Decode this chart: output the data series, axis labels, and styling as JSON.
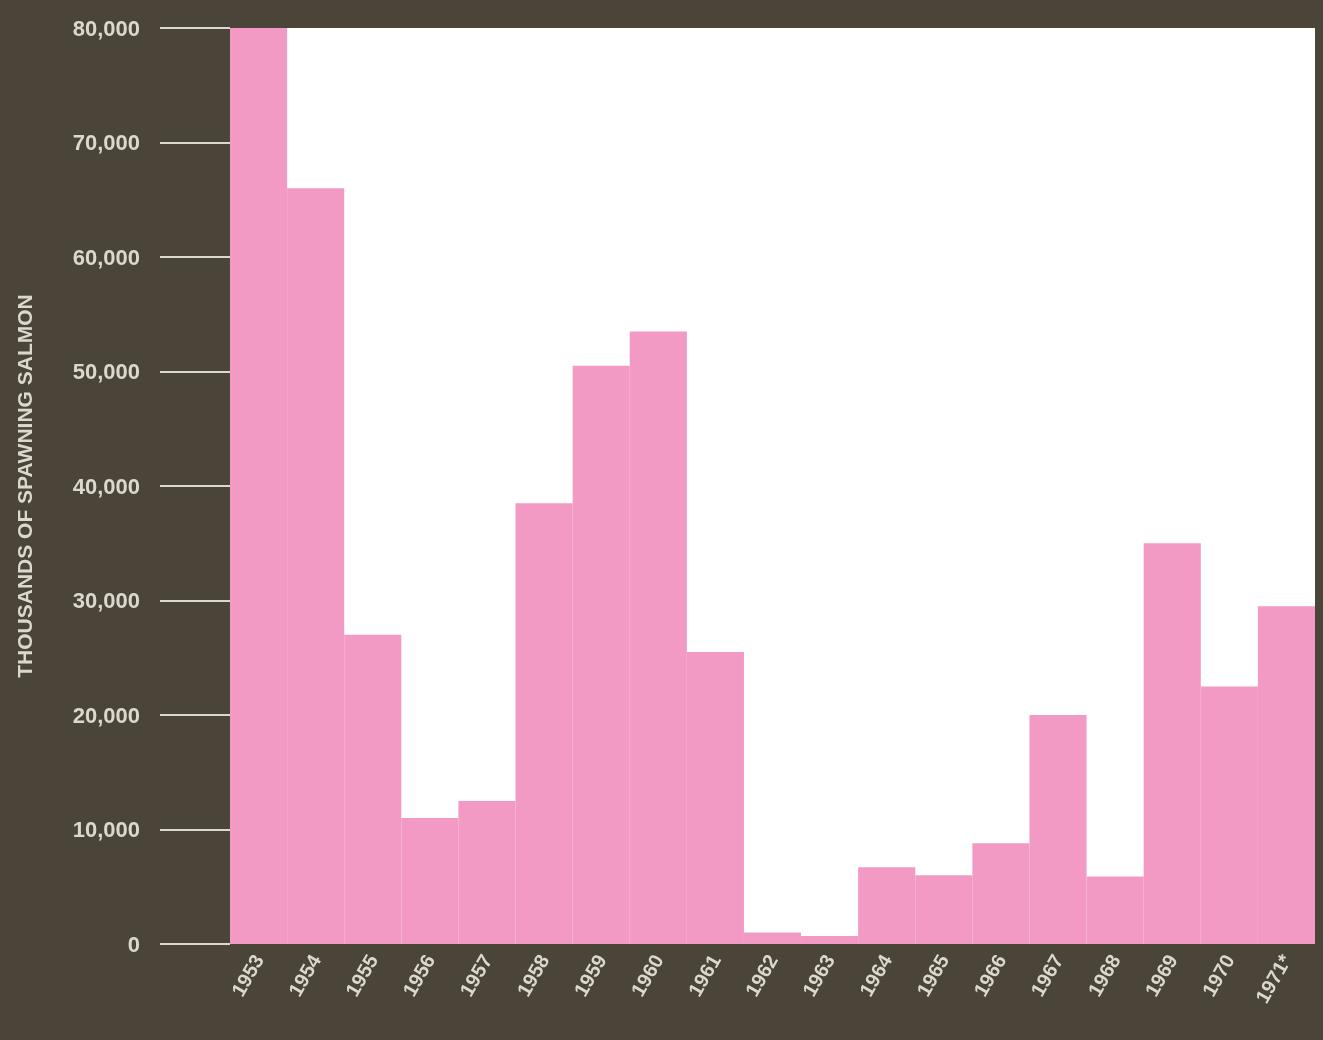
{
  "chart_data": {
    "type": "bar",
    "ylabel": "THOUSANDS OF SPAWNING SALMON",
    "categories": [
      "1953",
      "1954",
      "1955",
      "1956",
      "1957",
      "1958",
      "1959",
      "1960",
      "1961",
      "1962",
      "1963",
      "1964",
      "1965",
      "1966",
      "1967",
      "1968",
      "1969",
      "1970",
      "1971*"
    ],
    "values": [
      80000,
      66000,
      27000,
      11000,
      12500,
      38500,
      50500,
      53500,
      25500,
      1000,
      700,
      6700,
      6000,
      8800,
      20000,
      5900,
      35000,
      22500,
      29500
    ],
    "color": "#f29ac4",
    "ylim": [
      0,
      80000
    ],
    "yticks": [
      0,
      {
        "value": 10000,
        "label": "10,000"
      },
      {
        "value": 20000,
        "label": "20,000"
      },
      {
        "value": 30000,
        "label": "30,000"
      },
      {
        "value": 40000,
        "label": "40,000"
      },
      {
        "value": 50000,
        "label": "50,000"
      },
      {
        "value": 60000,
        "label": "60,000"
      },
      {
        "value": 70000,
        "label": "70,000"
      },
      {
        "value": 80000,
        "label": "80,000"
      }
    ],
    "grid": false
  }
}
